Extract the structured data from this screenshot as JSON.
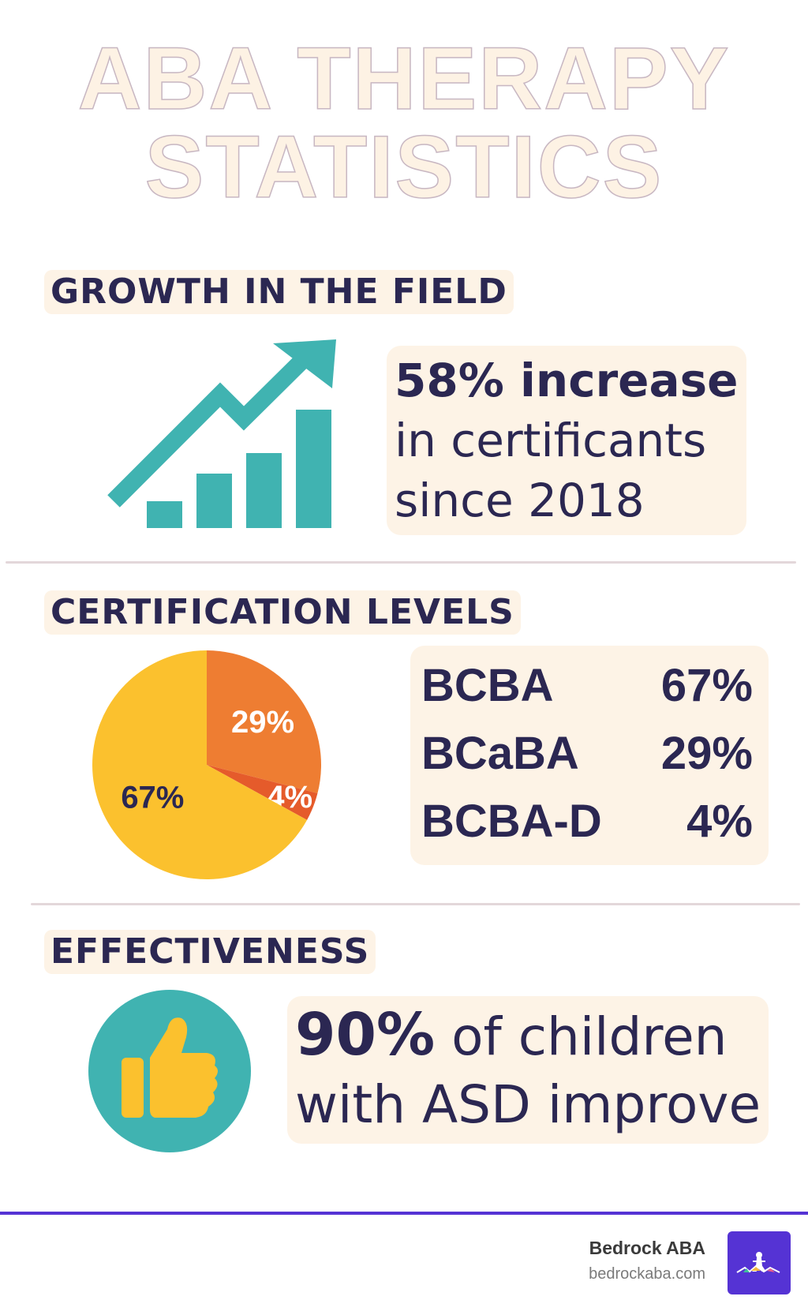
{
  "title": {
    "line1": "ABA THERAPY",
    "line2": "STATISTICS"
  },
  "sections": {
    "growth": {
      "heading": "GROWTH IN THE FIELD",
      "icon": "growth-chart-arrow-icon",
      "text_line1": "58% increase",
      "text_line2": "in certificants",
      "text_line3": "since 2018"
    },
    "certification": {
      "heading": "CERTIFICATION LEVELS",
      "chart_data": {
        "type": "pie",
        "categories": [
          "BCBA",
          "BCaBA",
          "BCBA-D"
        ],
        "values": [
          67,
          29,
          4
        ],
        "labels": [
          "67%",
          "29%",
          "4%"
        ],
        "colors": [
          "#fbc12e",
          "#ee7d32",
          "#e55b2b"
        ]
      },
      "legend": [
        {
          "name": "BCBA",
          "value": "67%"
        },
        {
          "name": "BCaBA",
          "value": "29%"
        },
        {
          "name": "BCBA-D",
          "value": "4%"
        }
      ]
    },
    "effectiveness": {
      "heading": "EFFECTIVENESS",
      "icon": "thumbs-up-icon",
      "highlight": "90%",
      "text_line1_rest": " of children",
      "text_line2": "with ASD improve"
    }
  },
  "footer": {
    "brand": "Bedrock ABA",
    "url": "bedrockaba.com",
    "logo_icon": "bedrock-mountain-logo-icon",
    "accent": "#5533d4"
  },
  "colors": {
    "teal": "#40b3b1",
    "navy": "#2b2752",
    "cream": "#fdf3e6"
  }
}
